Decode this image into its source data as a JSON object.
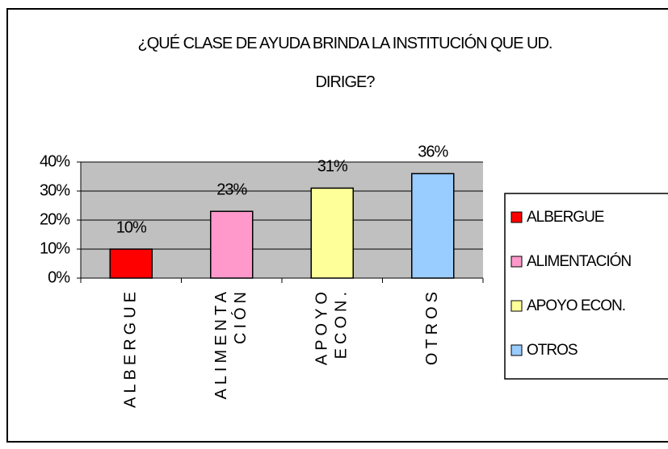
{
  "chart_data": {
    "type": "bar",
    "title": "¿QUÉ CLASE DE AYUDA BRINDA LA INSTITUCIÓN QUE UD. DIRIGE?",
    "categories": [
      "ALBERGUE",
      "ALIMENTACIÓN",
      "APOYO ECON.",
      "OTROS"
    ],
    "values": [
      10,
      23,
      31,
      36
    ],
    "value_labels": [
      "10%",
      "23%",
      "31%",
      "36%"
    ],
    "colors": [
      "#ff0000",
      "#ff99cc",
      "#ffff99",
      "#99ccff"
    ],
    "ylim": [
      0,
      40
    ],
    "yticks": [
      {
        "value": 0,
        "label": "0%"
      },
      {
        "value": 10,
        "label": "10%"
      },
      {
        "value": 20,
        "label": "20%"
      },
      {
        "value": 30,
        "label": "30%"
      },
      {
        "value": 40,
        "label": "40%"
      }
    ],
    "grid": true,
    "legend": "right"
  }
}
